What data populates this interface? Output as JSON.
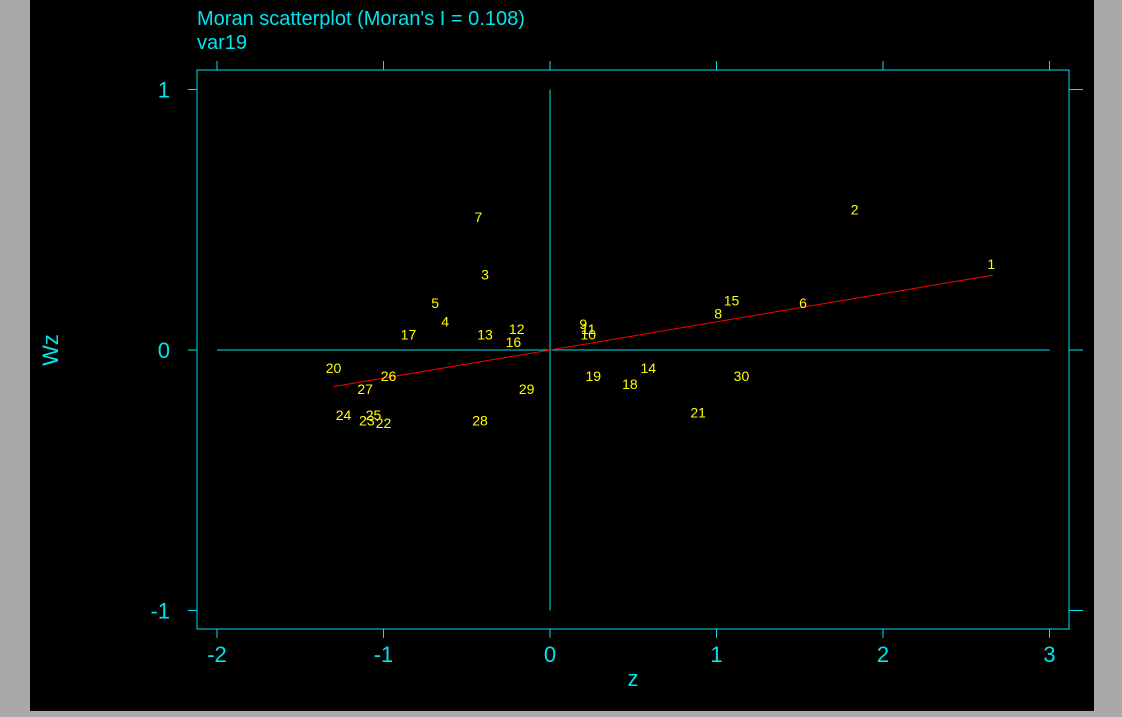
{
  "window": {
    "background": "#000000"
  },
  "chart_data": {
    "type": "scatter",
    "title": "Moran scatterplot (Moran's I = 0.108)",
    "subtitle": "var19",
    "xlabel": "z",
    "ylabel": "Wz",
    "xlim": [
      -2.1,
      3.13
    ],
    "ylim": [
      -1.08,
      1.08
    ],
    "xticks": [
      {
        "value": -2,
        "label": "-2"
      },
      {
        "value": -1,
        "label": "-1"
      },
      {
        "value": 0,
        "label": "0"
      },
      {
        "value": 1,
        "label": "1"
      },
      {
        "value": 2,
        "label": "2"
      },
      {
        "value": 3,
        "label": "3"
      }
    ],
    "yticks": [
      {
        "value": -1,
        "label": "-1"
      },
      {
        "value": 0,
        "label": "0"
      },
      {
        "value": 1,
        "label": "1"
      }
    ],
    "reference_lines": {
      "x0": 0,
      "y0": 0,
      "extent_x": [
        -2,
        3
      ],
      "extent_y": [
        -1,
        1
      ]
    },
    "regression_line": {
      "slope": 0.108,
      "x": [
        -1.3,
        2.66
      ]
    },
    "colors": {
      "axes": "#00e5ee",
      "points": "#ffff00",
      "regression": "#ff0000"
    },
    "points": [
      {
        "label": "1",
        "x": 2.65,
        "y": 0.33
      },
      {
        "label": "2",
        "x": 1.83,
        "y": 0.54
      },
      {
        "label": "3",
        "x": -0.39,
        "y": 0.29
      },
      {
        "label": "4",
        "x": -0.63,
        "y": 0.11
      },
      {
        "label": "5",
        "x": -0.69,
        "y": 0.18
      },
      {
        "label": "6",
        "x": 1.52,
        "y": 0.18
      },
      {
        "label": "7",
        "x": -0.43,
        "y": 0.51
      },
      {
        "label": "8",
        "x": 1.01,
        "y": 0.14
      },
      {
        "label": "9",
        "x": 0.2,
        "y": 0.1
      },
      {
        "label": "10",
        "x": 0.23,
        "y": 0.06
      },
      {
        "label": "11",
        "x": 0.23,
        "y": 0.08
      },
      {
        "label": "12",
        "x": -0.2,
        "y": 0.08
      },
      {
        "label": "13",
        "x": -0.39,
        "y": 0.06
      },
      {
        "label": "14",
        "x": 0.59,
        "y": -0.07
      },
      {
        "label": "15",
        "x": 1.09,
        "y": 0.19
      },
      {
        "label": "16",
        "x": -0.22,
        "y": 0.03
      },
      {
        "label": "17",
        "x": -0.85,
        "y": 0.06
      },
      {
        "label": "18",
        "x": 0.48,
        "y": -0.13
      },
      {
        "label": "19",
        "x": 0.26,
        "y": -0.1
      },
      {
        "label": "20",
        "x": -1.3,
        "y": -0.07
      },
      {
        "label": "21",
        "x": 0.89,
        "y": -0.24
      },
      {
        "label": "22",
        "x": -1.0,
        "y": -0.28
      },
      {
        "label": "23",
        "x": -1.1,
        "y": -0.27
      },
      {
        "label": "24",
        "x": -1.24,
        "y": -0.25
      },
      {
        "label": "25",
        "x": -1.06,
        "y": -0.25
      },
      {
        "label": "26",
        "x": -0.97,
        "y": -0.1
      },
      {
        "label": "27",
        "x": -1.11,
        "y": -0.15
      },
      {
        "label": "28",
        "x": -0.42,
        "y": -0.27
      },
      {
        "label": "29",
        "x": -0.14,
        "y": -0.15
      },
      {
        "label": "30",
        "x": 1.15,
        "y": -0.1
      }
    ]
  }
}
